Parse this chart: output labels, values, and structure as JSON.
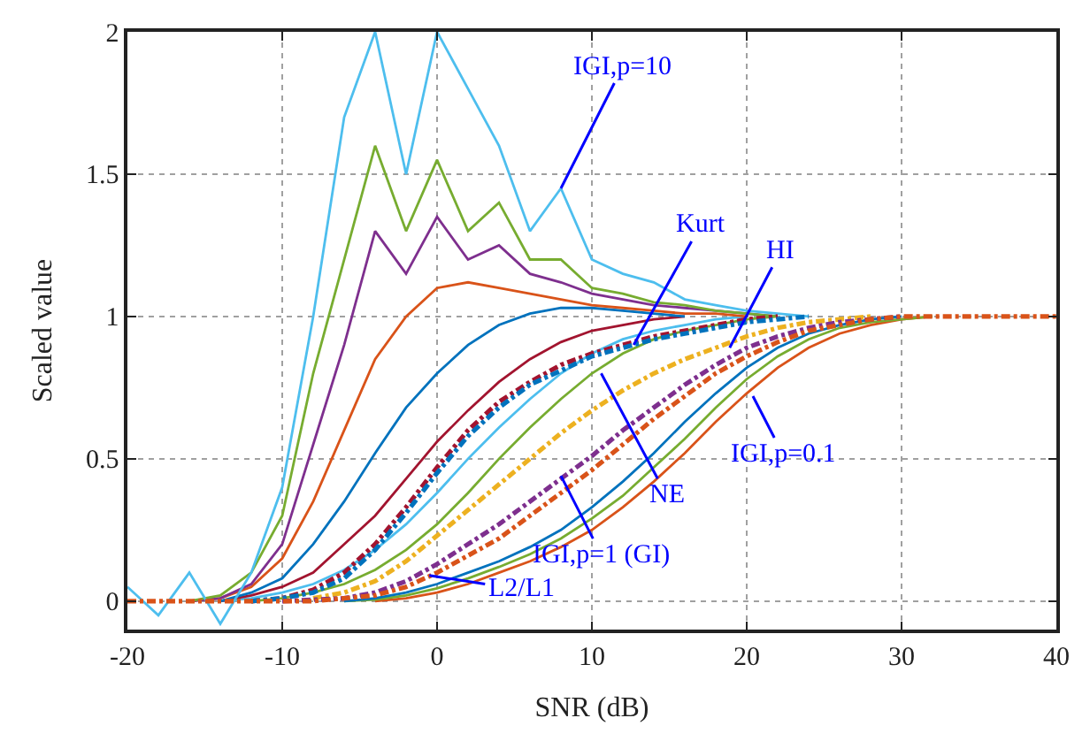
{
  "chart_data": {
    "type": "line",
    "xlabel": "SNR (dB)",
    "ylabel": "Scaled value",
    "x": [
      -20,
      -18,
      -16,
      -14,
      -12,
      -10,
      -8,
      -6,
      -4,
      -2,
      0,
      2,
      4,
      6,
      8,
      10,
      12,
      14,
      16,
      18,
      20,
      22,
      24,
      26,
      28,
      30,
      32,
      34,
      36,
      38,
      40
    ],
    "xlim": [
      -20,
      40
    ],
    "xticks": [
      -20,
      -10,
      0,
      10,
      20,
      30,
      40
    ],
    "ylim": [
      -0.1,
      2
    ],
    "yticks": [
      0,
      0.5,
      1,
      1.5,
      2
    ],
    "grid": true,
    "marker": "none",
    "series": [
      {
        "color": "#d95319",
        "values": [
          null,
          null,
          null,
          null,
          null,
          null,
          null,
          null,
          0,
          0.01,
          0.03,
          0.06,
          0.1,
          0.14,
          0.19,
          0.25,
          0.33,
          0.42,
          0.52,
          0.63,
          0.73,
          0.82,
          0.89,
          0.94,
          0.97,
          0.99,
          1,
          null,
          null,
          null,
          null
        ]
      },
      {
        "color": "#77ac30",
        "values": [
          null,
          null,
          null,
          null,
          null,
          null,
          null,
          0,
          0.005,
          0.02,
          0.045,
          0.08,
          0.12,
          0.165,
          0.22,
          0.29,
          0.37,
          0.47,
          0.57,
          0.68,
          0.78,
          0.86,
          0.92,
          0.96,
          0.98,
          0.99,
          1,
          null,
          null,
          null,
          null
        ]
      },
      {
        "color": "#0072bd",
        "values": [
          null,
          null,
          null,
          null,
          null,
          null,
          null,
          0,
          0.01,
          0.03,
          0.06,
          0.1,
          0.14,
          0.19,
          0.25,
          0.33,
          0.42,
          0.52,
          0.63,
          0.73,
          0.82,
          0.89,
          0.94,
          0.97,
          0.99,
          1,
          null,
          null,
          null,
          null,
          null
        ]
      },
      {
        "color": "#77ac30",
        "values": [
          null,
          null,
          null,
          null,
          0,
          0.01,
          0.03,
          0.06,
          0.11,
          0.18,
          0.27,
          0.38,
          0.5,
          0.61,
          0.71,
          0.8,
          0.87,
          0.92,
          0.95,
          0.97,
          0.99,
          1,
          null,
          null,
          null,
          null,
          null,
          null,
          null,
          null,
          null
        ]
      },
      {
        "color": "#4dbeee",
        "values": [
          null,
          null,
          null,
          0,
          0.01,
          0.03,
          0.06,
          0.11,
          0.18,
          0.27,
          0.38,
          0.5,
          0.61,
          0.71,
          0.8,
          0.87,
          0.92,
          0.95,
          0.97,
          0.99,
          1,
          null,
          null,
          null,
          null,
          null,
          null,
          null,
          null,
          null,
          null
        ]
      },
      {
        "color": "#a2142f",
        "values": [
          null,
          null,
          null,
          0,
          0.02,
          0.05,
          0.1,
          0.2,
          0.3,
          0.43,
          0.56,
          0.67,
          0.77,
          0.85,
          0.91,
          0.95,
          0.97,
          0.99,
          1,
          null,
          null,
          null,
          null,
          null,
          null,
          null,
          null,
          null,
          null,
          null,
          null
        ]
      },
      {
        "color": "#0072bd",
        "values": [
          null,
          null,
          null,
          0,
          0.03,
          0.08,
          0.2,
          0.35,
          0.52,
          0.68,
          0.8,
          0.9,
          0.97,
          1.01,
          1.03,
          1.03,
          1.02,
          1.01,
          1,
          null,
          null,
          null,
          null,
          null,
          null,
          null,
          null,
          null,
          null,
          null,
          null
        ]
      },
      {
        "color": "#d95319",
        "values": [
          null,
          null,
          0,
          0.01,
          0.05,
          0.15,
          0.35,
          0.6,
          0.85,
          1.0,
          1.1,
          1.12,
          1.1,
          1.08,
          1.06,
          1.04,
          1.03,
          1.02,
          1.01,
          1.01,
          1,
          null,
          null,
          null,
          null,
          null,
          null,
          null,
          null,
          null,
          null
        ]
      },
      {
        "color": "#7e2f8e",
        "values": [
          null,
          null,
          0,
          0.01,
          0.06,
          0.2,
          0.55,
          0.9,
          1.3,
          1.15,
          1.35,
          1.2,
          1.25,
          1.15,
          1.12,
          1.08,
          1.06,
          1.04,
          1.03,
          1.02,
          1.01,
          1,
          null,
          null,
          null,
          null,
          null,
          null,
          null,
          null,
          null
        ]
      },
      {
        "color": "#77ac30",
        "values": [
          null,
          null,
          0,
          0.02,
          0.1,
          0.3,
          0.8,
          1.2,
          1.6,
          1.3,
          1.55,
          1.3,
          1.4,
          1.2,
          1.2,
          1.1,
          1.08,
          1.05,
          1.04,
          1.02,
          1.01,
          1,
          null,
          null,
          null,
          null,
          null,
          null,
          null,
          null,
          null
        ]
      },
      {
        "color": "#4dbeee",
        "values": [
          0.05,
          -0.05,
          0.1,
          -0.08,
          0.1,
          0.4,
          1.0,
          1.7,
          2.0,
          1.5,
          2.0,
          1.8,
          1.6,
          1.3,
          1.45,
          1.2,
          1.15,
          1.12,
          1.06,
          1.04,
          1.02,
          1.01,
          1,
          null,
          null,
          null,
          null,
          null,
          null,
          null,
          null
        ]
      },
      {
        "color": "#a2142f",
        "line_style": "dashed",
        "values": [
          null,
          null,
          null,
          null,
          0,
          0.01,
          0.04,
          0.1,
          0.2,
          0.33,
          0.47,
          0.6,
          0.7,
          0.77,
          0.83,
          0.87,
          0.9,
          0.93,
          0.95,
          0.97,
          0.99,
          1,
          null,
          null,
          null,
          null,
          null,
          null,
          null,
          null,
          null
        ]
      },
      {
        "color": "#0072bd",
        "line_style": "dashed",
        "values": [
          null,
          null,
          null,
          null,
          0,
          0.01,
          0.03,
          0.08,
          0.18,
          0.31,
          0.45,
          0.58,
          0.68,
          0.76,
          0.81,
          0.86,
          0.89,
          0.92,
          0.94,
          0.96,
          0.98,
          0.99,
          1,
          null,
          null,
          null,
          null,
          null,
          null,
          null,
          null
        ]
      },
      {
        "color": "#edb120",
        "line_style": "dashed",
        "values": [
          null,
          null,
          null,
          null,
          null,
          null,
          0.01,
          0.03,
          0.07,
          0.14,
          0.23,
          0.32,
          0.41,
          0.5,
          0.59,
          0.67,
          0.74,
          0.8,
          0.85,
          0.89,
          0.93,
          0.96,
          0.98,
          0.99,
          1,
          null,
          null,
          null,
          null,
          null,
          null
        ]
      },
      {
        "color": "#7e2f8e",
        "line_style": "dashed",
        "values": [
          null,
          null,
          null,
          null,
          null,
          0,
          0.005,
          0.01,
          0.03,
          0.07,
          0.13,
          0.2,
          0.27,
          0.35,
          0.43,
          0.51,
          0.6,
          0.68,
          0.76,
          0.83,
          0.89,
          0.93,
          0.96,
          0.98,
          0.99,
          1,
          null,
          null,
          null,
          null,
          null
        ]
      },
      {
        "color": "#d95319",
        "line_style": "dashed",
        "values": [
          0,
          0,
          0,
          0,
          0,
          0,
          0,
          0.01,
          0.02,
          0.05,
          0.1,
          0.16,
          0.22,
          0.3,
          0.38,
          0.46,
          0.55,
          0.64,
          0.72,
          0.8,
          0.86,
          0.91,
          0.95,
          0.97,
          0.99,
          1,
          1,
          1,
          1,
          1,
          1
        ]
      }
    ],
    "annotations": [
      {
        "text": "IGI,p=10",
        "x": 8,
        "y": 1.45
      },
      {
        "text": "Kurt",
        "x": 12.7,
        "y": 0.9
      },
      {
        "text": "HI",
        "x": 18.9,
        "y": 0.89
      },
      {
        "text": "NE",
        "x": 10.6,
        "y": 0.8
      },
      {
        "text": "IGI,p=0.1",
        "x": 20.4,
        "y": 0.72
      },
      {
        "text": "IGI,p=1 (GI)",
        "x": 8.0,
        "y": 0.44
      },
      {
        "text": "L2/L1",
        "x": -0.5,
        "y": 0.09
      }
    ]
  }
}
